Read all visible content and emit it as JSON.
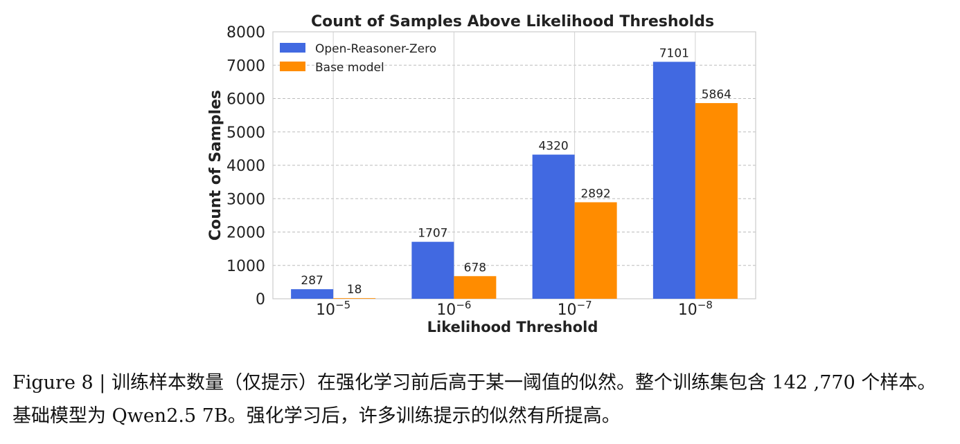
{
  "chart_data": {
    "type": "bar",
    "title": "Count of Samples Above Likelihood Thresholds",
    "xlabel": "Likelihood Threshold",
    "ylabel": "Count of Samples",
    "categories": [
      {
        "base": "10",
        "exp": "−5"
      },
      {
        "base": "10",
        "exp": "−6"
      },
      {
        "base": "10",
        "exp": "−7"
      },
      {
        "base": "10",
        "exp": "−8"
      }
    ],
    "series": [
      {
        "name": "Open-Reasoner-Zero",
        "color": "#4169e1",
        "values": [
          287,
          1707,
          4320,
          7101
        ]
      },
      {
        "name": "Base model",
        "color": "#ff8c00",
        "values": [
          18,
          678,
          2892,
          5864
        ]
      }
    ],
    "ylim": [
      0,
      8000
    ],
    "yticks": [
      0,
      1000,
      2000,
      3000,
      4000,
      5000,
      6000,
      7000,
      8000
    ],
    "legend_position": "top-left",
    "grid": true
  },
  "caption": {
    "label": "Figure 8 | ",
    "text": "训练样本数量（仅提示）在强化学习前后高于某一阈值的似然。整个训练集包含 142 ,770 个样本。基础模型为 Qwen2.5 7B。强化学习后，许多训练提示的似然有所提高。"
  }
}
